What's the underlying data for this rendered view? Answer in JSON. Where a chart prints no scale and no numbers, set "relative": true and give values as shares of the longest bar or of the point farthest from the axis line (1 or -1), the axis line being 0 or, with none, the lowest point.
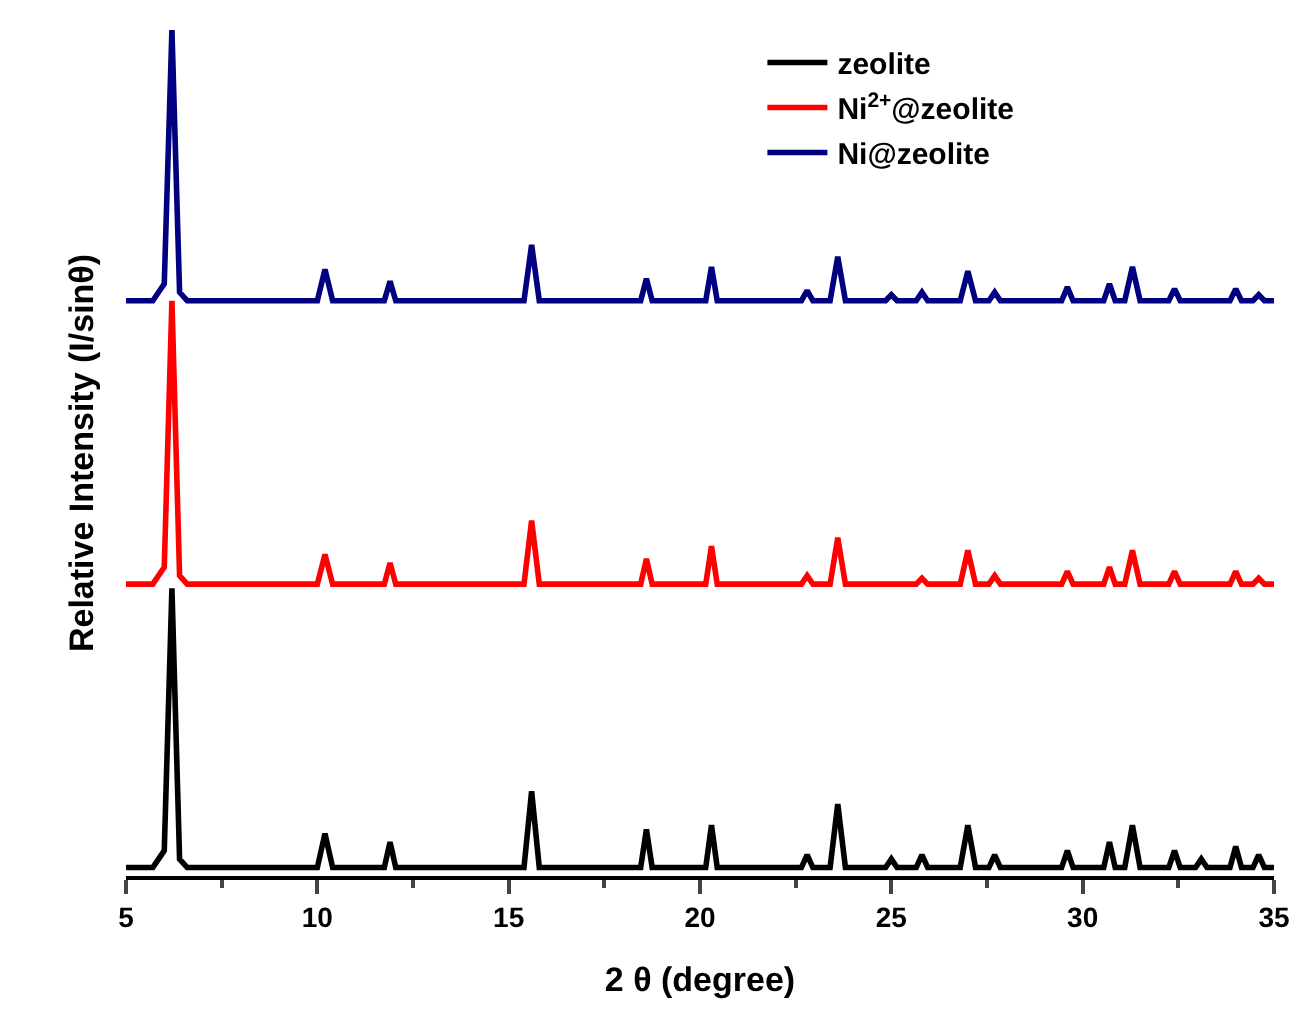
{
  "chart_data": {
    "type": "line",
    "relative": true,
    "xlabel": "2 θ (degree)",
    "ylabel": "Relative Intensity (I/sinθ)",
    "xlim": [
      5,
      35
    ],
    "xticks": [
      5,
      10,
      15,
      20,
      25,
      30,
      35
    ],
    "legend": "top right",
    "marker": "none",
    "line_style": "solid",
    "x": [
      5,
      5.7,
      5.85,
      6.0,
      6.2,
      6.4,
      6.6,
      10.0,
      10.2,
      10.4,
      11.75,
      11.9,
      12.05,
      15.4,
      15.6,
      15.8,
      18.45,
      18.6,
      18.75,
      20.15,
      20.3,
      20.45,
      22.65,
      22.8,
      22.95,
      23.4,
      23.6,
      23.8,
      24.85,
      25.0,
      25.15,
      25.65,
      25.8,
      25.95,
      26.8,
      27.0,
      27.2,
      27.55,
      27.7,
      27.85,
      29.45,
      29.6,
      29.75,
      30.55,
      30.7,
      30.85,
      31.1,
      31.3,
      31.5,
      32.25,
      32.4,
      32.55,
      32.95,
      33.1,
      33.25,
      33.85,
      34.0,
      34.15,
      34.45,
      34.6,
      34.75,
      35
    ],
    "series": [
      {
        "name": "zeolite",
        "color": "#000000",
        "values": [
          0.01,
          0.01,
          0.02,
          0.03,
          0.34,
          0.02,
          0.01,
          0.01,
          0.05,
          0.01,
          0.01,
          0.04,
          0.01,
          0.01,
          0.1,
          0.01,
          0.01,
          0.055,
          0.01,
          0.01,
          0.06,
          0.01,
          0.01,
          0.025,
          0.01,
          0.01,
          0.085,
          0.01,
          0.01,
          0.02,
          0.01,
          0.01,
          0.025,
          0.01,
          0.01,
          0.06,
          0.01,
          0.01,
          0.025,
          0.01,
          0.01,
          0.03,
          0.01,
          0.01,
          0.04,
          0.01,
          0.01,
          0.06,
          0.01,
          0.01,
          0.03,
          0.01,
          0.01,
          0.02,
          0.01,
          0.01,
          0.035,
          0.01,
          0.01,
          0.025,
          0.01,
          0.01
        ]
      },
      {
        "name": "Ni$^{2+}$@zeolite",
        "color": "#ff0000",
        "values": [
          0.345,
          0.345,
          0.355,
          0.365,
          0.68,
          0.355,
          0.345,
          0.345,
          0.38,
          0.345,
          0.345,
          0.37,
          0.345,
          0.345,
          0.42,
          0.345,
          0.345,
          0.375,
          0.345,
          0.345,
          0.39,
          0.345,
          0.345,
          0.355,
          0.345,
          0.345,
          0.4,
          0.345,
          0.345,
          0.345,
          0.345,
          0.345,
          0.352,
          0.345,
          0.345,
          0.385,
          0.345,
          0.345,
          0.355,
          0.345,
          0.345,
          0.36,
          0.345,
          0.345,
          0.365,
          0.345,
          0.345,
          0.385,
          0.345,
          0.345,
          0.36,
          0.345,
          0.345,
          0.345,
          0.345,
          0.345,
          0.36,
          0.345,
          0.345,
          0.352,
          0.345,
          0.345
        ]
      },
      {
        "name": "Ni@zeolite",
        "color": "#000080",
        "values": [
          0.68,
          0.68,
          0.69,
          0.7,
          1,
          0.69,
          0.68,
          0.68,
          0.717,
          0.68,
          0.68,
          0.703,
          0.68,
          0.68,
          0.746,
          0.68,
          0.68,
          0.706,
          0.68,
          0.68,
          0.72,
          0.68,
          0.68,
          0.692,
          0.68,
          0.68,
          0.732,
          0.68,
          0.68,
          0.687,
          0.68,
          0.68,
          0.69,
          0.68,
          0.68,
          0.715,
          0.68,
          0.68,
          0.69,
          0.68,
          0.68,
          0.696,
          0.68,
          0.68,
          0.7,
          0.68,
          0.68,
          0.72,
          0.68,
          0.68,
          0.694,
          0.68,
          0.68,
          0.68,
          0.68,
          0.68,
          0.694,
          0.68,
          0.68,
          0.687,
          0.68,
          0.68
        ]
      }
    ]
  }
}
